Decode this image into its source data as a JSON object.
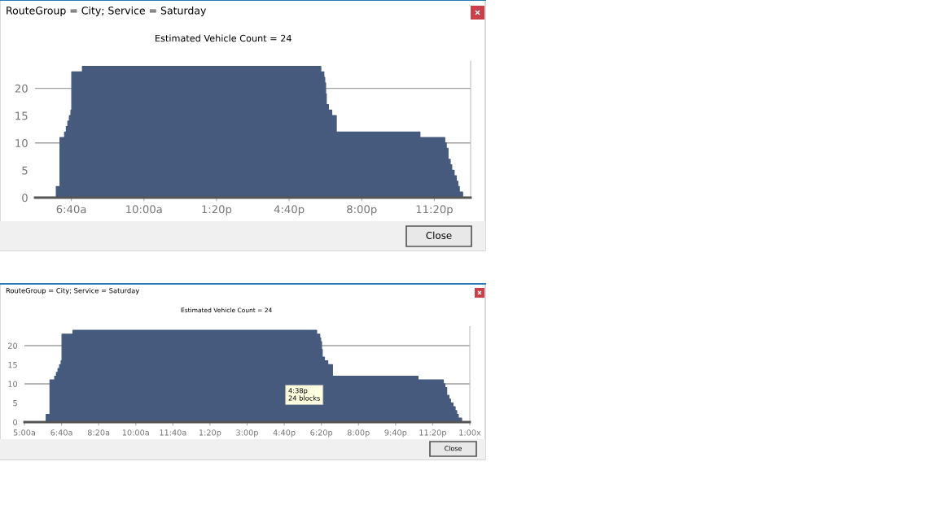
{
  "chart_data": [
    {
      "type": "area",
      "title": "RouteGroup = City; Service = Saturday",
      "subtitle": "Estimated Vehicle Count = 24",
      "series": [
        {
          "color": "#465a7e",
          "x": [
            5,
            5.98,
            5.98,
            6.15,
            6.15,
            6.36,
            6.36,
            6.44,
            6.44,
            6.51,
            6.51,
            6.58,
            6.58,
            6.65,
            6.65,
            6.69,
            6.69,
            7.18,
            7.18,
            18.12,
            18.12,
            18.26,
            18.26,
            18.3,
            18.3,
            18.34,
            18.34,
            18.37,
            18.37,
            18.47,
            18.47,
            18.62,
            18.62,
            18.83,
            18.83,
            22.67,
            22.67,
            23.81,
            23.81,
            23.88,
            23.88,
            23.96,
            23.96,
            24.06,
            24.06,
            24.13,
            24.13,
            24.24,
            24.24,
            24.34,
            24.34,
            24.41,
            24.41,
            24.48,
            24.48,
            24.63,
            24.63,
            25
          ],
          "values": [
            0,
            0,
            2,
            2,
            11,
            11,
            12,
            12,
            13,
            13,
            14,
            14,
            15,
            15,
            16,
            16,
            23,
            23,
            24,
            24,
            23,
            23,
            22,
            22,
            21,
            21,
            19,
            19,
            17,
            17,
            16,
            16,
            15,
            15,
            12,
            12,
            11,
            11,
            10,
            10,
            9,
            9,
            7,
            7,
            6,
            6,
            5,
            5,
            4,
            4,
            3,
            3,
            2,
            2,
            1,
            1,
            0,
            0
          ]
        }
      ],
      "xlim": [
        5,
        25
      ],
      "xticks": [
        {
          "value": 6.667,
          "label": "6:40a"
        },
        {
          "value": 10,
          "label": "10:00a"
        },
        {
          "value": 13.333,
          "label": "1:20p"
        },
        {
          "value": 16.667,
          "label": "4:40p"
        },
        {
          "value": 20,
          "label": "8:00p"
        },
        {
          "value": 23.333,
          "label": "11:20p"
        }
      ],
      "ylim": [
        0,
        25
      ],
      "yticks": [
        0,
        5,
        10,
        15,
        20
      ],
      "ref_lines": [
        {
          "axis": "y",
          "value": 10,
          "color": "#a0a0a0"
        },
        {
          "axis": "y",
          "value": 20,
          "color": "#a0a0a0"
        }
      ],
      "annotations": [
        "Close"
      ]
    },
    {
      "type": "area",
      "title": "RouteGroup = City; Service = Saturday",
      "subtitle": "Estimated Vehicle Count = 24",
      "series": [
        {
          "color": "#465a7e",
          "x": [
            5,
            5.98,
            5.98,
            6.15,
            6.15,
            6.36,
            6.36,
            6.44,
            6.44,
            6.51,
            6.51,
            6.58,
            6.58,
            6.65,
            6.65,
            6.69,
            6.69,
            7.18,
            7.18,
            18.12,
            18.12,
            18.26,
            18.26,
            18.3,
            18.3,
            18.34,
            18.34,
            18.37,
            18.37,
            18.47,
            18.47,
            18.62,
            18.62,
            18.83,
            18.83,
            22.67,
            22.67,
            23.81,
            23.81,
            23.88,
            23.88,
            23.96,
            23.96,
            24.06,
            24.06,
            24.13,
            24.13,
            24.24,
            24.24,
            24.34,
            24.34,
            24.41,
            24.41,
            24.48,
            24.48,
            24.63,
            24.63,
            25
          ],
          "values": [
            0,
            0,
            2,
            2,
            11,
            11,
            12,
            12,
            13,
            13,
            14,
            14,
            15,
            15,
            16,
            16,
            23,
            23,
            24,
            24,
            23,
            23,
            22,
            22,
            21,
            21,
            19,
            19,
            17,
            17,
            16,
            16,
            15,
            15,
            12,
            12,
            11,
            11,
            10,
            10,
            9,
            9,
            7,
            7,
            6,
            6,
            5,
            5,
            4,
            4,
            3,
            3,
            2,
            2,
            1,
            1,
            0,
            0
          ]
        }
      ],
      "xlim": [
        5,
        25
      ],
      "xticks": [
        {
          "value": 5,
          "label": "5:00a"
        },
        {
          "value": 6.667,
          "label": "6:40a"
        },
        {
          "value": 8.333,
          "label": "8:20a"
        },
        {
          "value": 10,
          "label": "10:00a"
        },
        {
          "value": 11.667,
          "label": "11:40a"
        },
        {
          "value": 13.333,
          "label": "1:20p"
        },
        {
          "value": 15,
          "label": "3:00p"
        },
        {
          "value": 16.667,
          "label": "4:40p"
        },
        {
          "value": 18.333,
          "label": "6:20p"
        },
        {
          "value": 20,
          "label": "8:00p"
        },
        {
          "value": 21.667,
          "label": "9:40p"
        },
        {
          "value": 23.333,
          "label": "11:20p"
        },
        {
          "value": 25,
          "label": "1:00x"
        }
      ],
      "ylim": [
        0,
        25
      ],
      "yticks": [
        0,
        5,
        10,
        15,
        20
      ],
      "ref_lines": [
        {
          "axis": "y",
          "value": 10,
          "color": "#a0a0a0"
        },
        {
          "axis": "y",
          "value": 20,
          "color": "#a0a0a0"
        }
      ],
      "annotations": [
        "4:38p\n24 blocks",
        "Close"
      ]
    }
  ]
}
